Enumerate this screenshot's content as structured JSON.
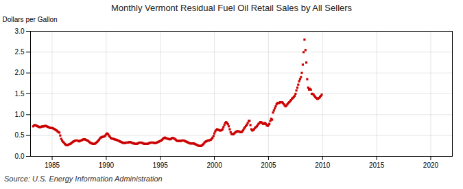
{
  "chart_data": {
    "type": "scatter",
    "title": "Monthly Vermont Residual Fuel Oil Retail Sales by All Sellers",
    "ylabel": "Dollars per Gallon",
    "annotations": [
      "Source: U.S. Energy Information Administration"
    ],
    "color": "#cc0000",
    "marker": "square",
    "grid": true,
    "xlim": [
      1983,
      2022
    ],
    "ylim": [
      0,
      3
    ],
    "xticks": [
      1985,
      1990,
      1995,
      2000,
      2005,
      2010,
      2015,
      2020
    ],
    "yticks": [
      {
        "value": 0,
        "label": "0.0"
      },
      0.5,
      {
        "value": 1,
        "label": "1.0"
      },
      1.5,
      {
        "value": 2,
        "label": "2.0"
      },
      2.5,
      {
        "value": 3,
        "label": "3.0"
      }
    ],
    "x": [
      1983.25,
      1983.33,
      1983.42,
      1983.5,
      1983.58,
      1983.67,
      1983.75,
      1983.83,
      1983.92,
      1984,
      1984.08,
      1984.17,
      1984.25,
      1984.33,
      1984.42,
      1984.5,
      1984.58,
      1984.67,
      1984.75,
      1984.83,
      1984.92,
      1985,
      1985.08,
      1985.17,
      1985.25,
      1985.33,
      1985.42,
      1985.5,
      1985.58,
      1985.67,
      1985.75,
      1985.83,
      1985.92,
      1986,
      1986.08,
      1986.17,
      1986.25,
      1986.33,
      1986.42,
      1986.5,
      1986.58,
      1986.67,
      1986.75,
      1986.83,
      1986.92,
      1987,
      1987.08,
      1987.17,
      1987.25,
      1987.33,
      1987.42,
      1987.5,
      1987.58,
      1987.67,
      1987.75,
      1987.83,
      1987.92,
      1988,
      1988.08,
      1988.17,
      1988.25,
      1988.33,
      1988.42,
      1988.5,
      1988.58,
      1988.67,
      1988.75,
      1988.83,
      1988.92,
      1989,
      1989.08,
      1989.17,
      1989.25,
      1989.33,
      1989.42,
      1989.5,
      1989.58,
      1989.67,
      1989.75,
      1989.83,
      1989.92,
      1990,
      1990.08,
      1990.17,
      1990.25,
      1990.33,
      1990.42,
      1990.5,
      1990.58,
      1990.67,
      1990.75,
      1990.83,
      1990.92,
      1991,
      1991.08,
      1991.17,
      1991.25,
      1991.33,
      1991.42,
      1991.5,
      1991.58,
      1991.67,
      1991.75,
      1991.83,
      1991.92,
      1992,
      1992.08,
      1992.17,
      1992.25,
      1992.33,
      1992.42,
      1992.5,
      1992.58,
      1992.67,
      1992.75,
      1992.83,
      1992.92,
      1993,
      1993.08,
      1993.17,
      1993.25,
      1993.33,
      1993.42,
      1993.5,
      1993.58,
      1993.67,
      1993.75,
      1993.83,
      1993.92,
      1994,
      1994.08,
      1994.17,
      1994.25,
      1994.33,
      1994.42,
      1994.5,
      1994.58,
      1994.67,
      1994.75,
      1994.83,
      1994.92,
      1995,
      1995.08,
      1995.17,
      1995.25,
      1995.33,
      1995.42,
      1995.5,
      1995.58,
      1995.67,
      1995.75,
      1995.83,
      1995.92,
      1996,
      1996.08,
      1996.17,
      1996.25,
      1996.33,
      1996.42,
      1996.5,
      1996.58,
      1996.67,
      1996.75,
      1996.83,
      1996.92,
      1997,
      1997.08,
      1997.17,
      1997.25,
      1997.33,
      1997.42,
      1997.5,
      1997.58,
      1997.67,
      1997.75,
      1997.83,
      1997.92,
      1998,
      1998.08,
      1998.17,
      1998.25,
      1998.33,
      1998.42,
      1998.5,
      1998.58,
      1998.67,
      1998.75,
      1998.83,
      1998.92,
      1999,
      1999.08,
      1999.17,
      1999.25,
      1999.33,
      1999.42,
      1999.5,
      1999.58,
      1999.67,
      1999.75,
      1999.83,
      1999.92,
      2000,
      2000.08,
      2000.17,
      2000.25,
      2000.33,
      2000.42,
      2000.5,
      2000.58,
      2000.67,
      2000.75,
      2000.83,
      2000.92,
      2001,
      2001.08,
      2001.17,
      2001.25,
      2001.33,
      2001.42,
      2001.5,
      2001.58,
      2001.67,
      2001.75,
      2001.83,
      2001.92,
      2002,
      2002.08,
      2002.17,
      2002.25,
      2002.33,
      2002.42,
      2002.5,
      2002.58,
      2002.67,
      2002.75,
      2002.83,
      2002.92,
      2003,
      2003.08,
      2003.17,
      2003.25,
      2003.33,
      2003.42,
      2003.5,
      2003.58,
      2003.67,
      2003.75,
      2003.83,
      2003.92,
      2004,
      2004.08,
      2004.17,
      2004.25,
      2004.33,
      2004.42,
      2004.5,
      2004.58,
      2004.67,
      2004.75,
      2004.83,
      2004.92,
      2005,
      2005.08,
      2005.17,
      2005.25,
      2005.33,
      2005.42,
      2005.5,
      2005.58,
      2005.67,
      2005.75,
      2005.83,
      2005.92,
      2006,
      2006.08,
      2006.17,
      2006.25,
      2006.33,
      2006.42,
      2006.5,
      2006.58,
      2006.67,
      2006.75,
      2006.83,
      2006.92,
      2007,
      2007.08,
      2007.17,
      2007.25,
      2007.33,
      2007.42,
      2007.5,
      2007.58,
      2007.67,
      2007.75,
      2007.83,
      2007.92,
      2008,
      2008.08,
      2008.17,
      2008.25,
      2008.33,
      2008.42,
      2008.5,
      2008.58,
      2008.67,
      2008.75,
      2008.83,
      2008.92,
      2009,
      2009.08,
      2009.17,
      2009.25,
      2009.33,
      2009.42,
      2009.5,
      2009.58,
      2009.67,
      2009.75,
      2009.83,
      2009.92
    ],
    "values": [
      0.72,
      0.74,
      0.75,
      0.74,
      0.73,
      0.72,
      0.71,
      0.7,
      0.7,
      0.71,
      0.72,
      0.72,
      0.72,
      0.73,
      0.73,
      0.72,
      0.71,
      0.7,
      0.69,
      0.68,
      0.68,
      0.68,
      0.67,
      0.66,
      0.65,
      0.63,
      0.62,
      0.6,
      0.58,
      0.57,
      0.5,
      0.42,
      0.38,
      0.35,
      0.33,
      0.3,
      0.28,
      0.27,
      0.27,
      0.28,
      0.29,
      0.3,
      0.31,
      0.33,
      0.35,
      0.36,
      0.37,
      0.38,
      0.38,
      0.38,
      0.37,
      0.36,
      0.37,
      0.38,
      0.39,
      0.4,
      0.41,
      0.41,
      0.4,
      0.39,
      0.38,
      0.37,
      0.35,
      0.33,
      0.32,
      0.31,
      0.3,
      0.3,
      0.3,
      0.31,
      0.33,
      0.35,
      0.37,
      0.4,
      0.43,
      0.45,
      0.46,
      0.47,
      0.47,
      0.48,
      0.5,
      0.53,
      0.55,
      0.53,
      0.5,
      0.47,
      0.44,
      0.43,
      0.42,
      0.42,
      0.41,
      0.4,
      0.4,
      0.39,
      0.38,
      0.37,
      0.36,
      0.35,
      0.34,
      0.33,
      0.32,
      0.32,
      0.32,
      0.33,
      0.33,
      0.33,
      0.34,
      0.34,
      0.34,
      0.33,
      0.32,
      0.31,
      0.31,
      0.3,
      0.3,
      0.3,
      0.31,
      0.32,
      0.33,
      0.33,
      0.33,
      0.32,
      0.31,
      0.3,
      0.3,
      0.3,
      0.3,
      0.3,
      0.31,
      0.32,
      0.33,
      0.33,
      0.33,
      0.33,
      0.32,
      0.32,
      0.32,
      0.33,
      0.34,
      0.35,
      0.36,
      0.37,
      0.38,
      0.4,
      0.42,
      0.44,
      0.45,
      0.44,
      0.43,
      0.42,
      0.42,
      0.41,
      0.41,
      0.42,
      0.44,
      0.44,
      0.43,
      0.42,
      0.4,
      0.38,
      0.37,
      0.37,
      0.37,
      0.37,
      0.37,
      0.38,
      0.38,
      0.38,
      0.37,
      0.36,
      0.35,
      0.34,
      0.33,
      0.32,
      0.31,
      0.31,
      0.31,
      0.31,
      0.31,
      0.3,
      0.29,
      0.28,
      0.27,
      0.26,
      0.25,
      0.25,
      0.25,
      0.26,
      0.28,
      0.3,
      0.33,
      0.35,
      0.36,
      0.37,
      0.38,
      0.38,
      0.39,
      0.4,
      0.42,
      0.45,
      0.49,
      0.55,
      0.6,
      0.63,
      0.65,
      0.64,
      0.63,
      0.62,
      0.62,
      0.63,
      0.65,
      0.7,
      0.75,
      0.8,
      0.82,
      0.8,
      0.77,
      0.72,
      0.65,
      0.58,
      0.54,
      0.53,
      0.53,
      0.55,
      0.57,
      0.59,
      0.6,
      0.6,
      0.6,
      0.59,
      0.58,
      0.58,
      0.6,
      0.63,
      0.67,
      0.7,
      0.73,
      0.76,
      0.8,
      0.85,
      0.85,
      0.75,
      0.65,
      0.62,
      0.63,
      0.65,
      0.68,
      0.7,
      0.72,
      0.75,
      0.78,
      0.8,
      0.82,
      0.82,
      0.8,
      0.78,
      0.78,
      0.8,
      0.78,
      0.75,
      0.73,
      0.75,
      0.78,
      0.85,
      0.9,
      0.88,
      1.05,
      1.1,
      1.15,
      1.2,
      1.25,
      1.28,
      1.28,
      1.28,
      1.3,
      1.3,
      1.3,
      1.28,
      1.25,
      1.22,
      1.2,
      1.22,
      1.25,
      1.28,
      1.3,
      1.32,
      1.35,
      1.38,
      1.4,
      1.42,
      1.45,
      1.5,
      1.58,
      1.65,
      1.72,
      1.8,
      1.85,
      1.9,
      2.0,
      2.2,
      2.5,
      2.8,
      2.55,
      2.25,
      1.85,
      1.65,
      1.6,
      1.62,
      1.6,
      1.5,
      1.5,
      1.48,
      1.45,
      1.42,
      1.4,
      1.38,
      1.38,
      1.4,
      1.42,
      1.45,
      1.48
    ]
  }
}
